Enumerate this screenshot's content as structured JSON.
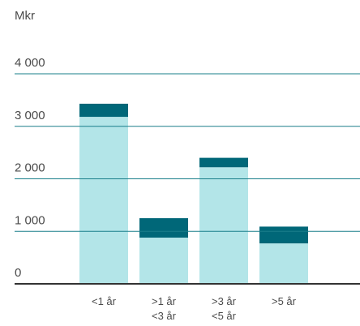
{
  "chart_data": {
    "type": "stacked_bar",
    "y_label": "Mkr",
    "categories": [
      "<1 år",
      ">1 år\n<3 år",
      ">3 år\n<5 år",
      ">5 år"
    ],
    "series": [
      {
        "color": "#b3e5e8",
        "values": [
          3180,
          880,
          2220,
          770
        ]
      },
      {
        "color": "#006778",
        "values": [
          250,
          370,
          180,
          320
        ]
      }
    ],
    "ylim": [
      0,
      4000
    ],
    "yticks": [
      0,
      {
        "value": 1000,
        "label": "1 000"
      },
      {
        "value": 2000,
        "label": "2 000"
      },
      {
        "value": 3000,
        "label": "3 000"
      },
      {
        "value": 4000,
        "label": "4 000"
      }
    ],
    "grid": true
  }
}
